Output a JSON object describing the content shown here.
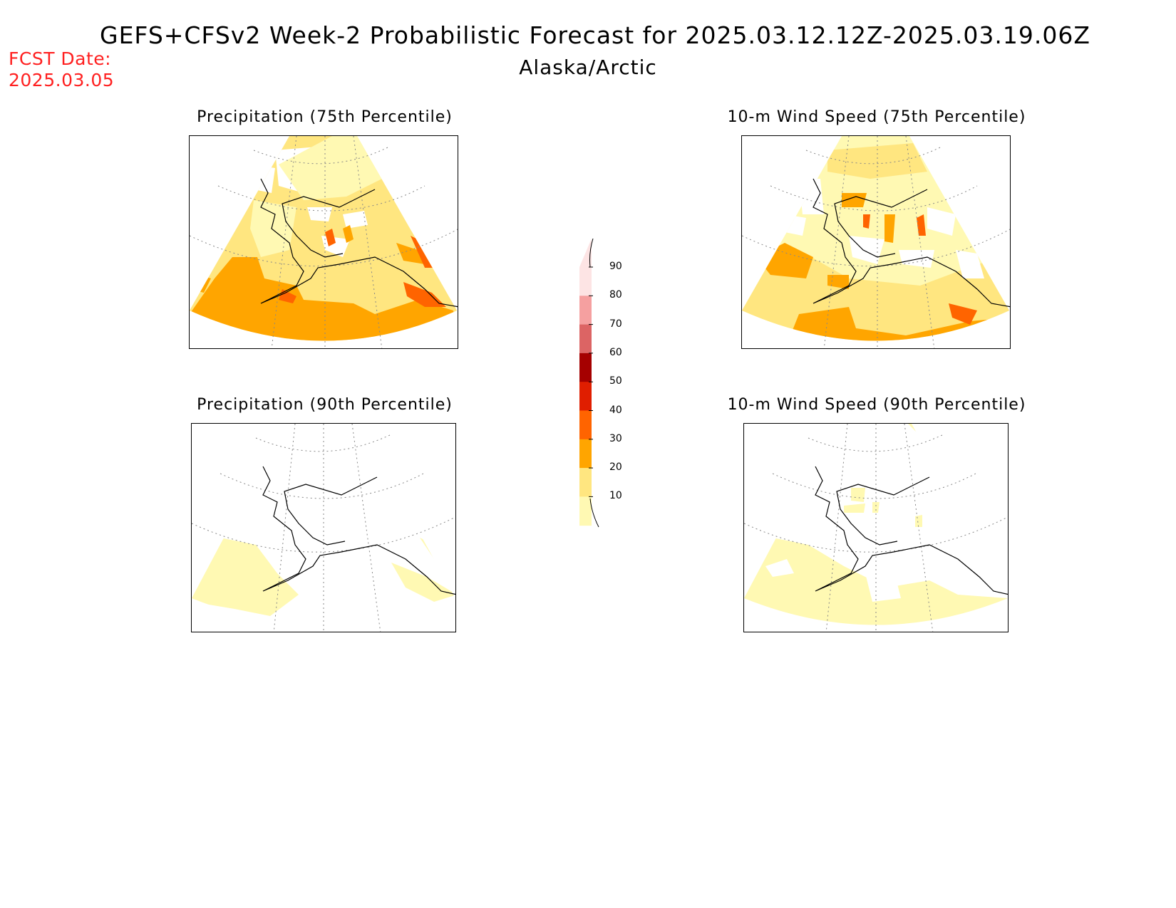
{
  "header": {
    "title": "GEFS+CFSv2 Week-2 Probabilistic Forecast for 2025.03.12.12Z-2025.03.19.06Z",
    "region": "Alaska/Arctic",
    "fcst_label": "FCST Date:",
    "fcst_date": "2025.03.05"
  },
  "panels": [
    {
      "title": "Precipitation (75th Percentile)"
    },
    {
      "title": "10-m Wind Speed (75th Percentile)"
    },
    {
      "title": "Precipitation (90th Percentile)"
    },
    {
      "title": "10-m Wind Speed (90th Percentile)"
    }
  ],
  "colorbar": {
    "labels": [
      "90",
      "80",
      "70",
      "60",
      "50",
      "40",
      "30",
      "20",
      "10"
    ],
    "colors": {
      "c10": "#fff9b3",
      "c20": "#ffe680",
      "c30": "#ffa500",
      "c40": "#ff6400",
      "c50": "#e01e00",
      "c60": "#a50000",
      "c70": "#dc6464",
      "c80": "#f5a0a0",
      "c90": "#fde4e4"
    }
  }
}
